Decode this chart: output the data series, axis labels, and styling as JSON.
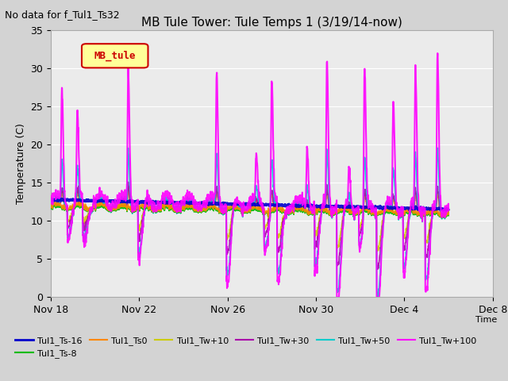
{
  "title": "MB Tule Tower: Tule Temps 1 (3/19/14-now)",
  "subtitle": "No data for f_Tul1_Ts32",
  "ylabel": "Temperature (C)",
  "xlabel": "Time",
  "ylim": [
    0,
    35
  ],
  "yticks": [
    0,
    5,
    10,
    15,
    20,
    25,
    30,
    35
  ],
  "bg_color": "#d3d3d3",
  "plot_bg": "#ebebeb",
  "legend_box_label": "MB_tule",
  "legend_box_facecolor": "#ffff99",
  "legend_box_edgecolor": "#cc0000",
  "xtick_positions": [
    0,
    4,
    8,
    12,
    16,
    20
  ],
  "xtick_labels": [
    "Nov 18",
    "Nov 22",
    "Nov 26",
    "Nov 30",
    "Dec 4",
    "Dec 8"
  ],
  "x_end": 18,
  "series": [
    {
      "name": "Tul1_Ts-16",
      "color": "#0000cc",
      "lw": 2.0,
      "zorder": 5
    },
    {
      "name": "Tul1_Ts-8",
      "color": "#00bb00",
      "lw": 1.2,
      "zorder": 4
    },
    {
      "name": "Tul1_Ts0",
      "color": "#ff8800",
      "lw": 1.2,
      "zorder": 4
    },
    {
      "name": "Tul1_Tw+10",
      "color": "#cccc00",
      "lw": 1.2,
      "zorder": 3
    },
    {
      "name": "Tul1_Tw+30",
      "color": "#aa00aa",
      "lw": 1.2,
      "zorder": 3
    },
    {
      "name": "Tul1_Tw+50",
      "color": "#00cccc",
      "lw": 1.2,
      "zorder": 3
    },
    {
      "name": "Tul1_Tw+100",
      "color": "#ff00ff",
      "lw": 1.5,
      "zorder": 6
    }
  ]
}
